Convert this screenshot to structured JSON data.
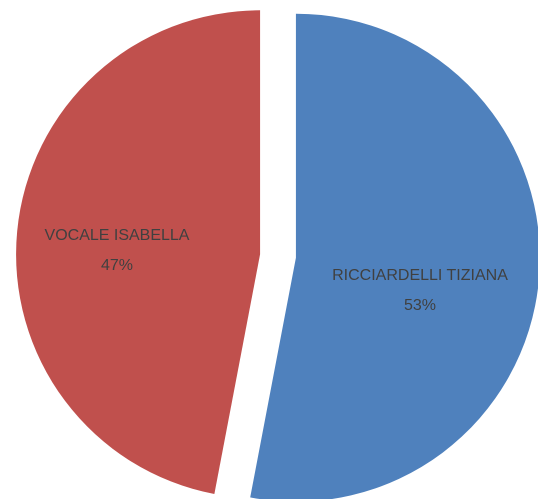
{
  "chart_data": {
    "type": "pie",
    "title": "",
    "slices": [
      {
        "label": "RICCIARDELLI TIZIANA",
        "percent_label": "53%",
        "value": 53,
        "color": "#4f81bd"
      },
      {
        "label": "VOCALE ISABELLA",
        "percent_label": "47%",
        "value": 47,
        "color": "#c0504d"
      }
    ],
    "start_angle": "12 o'clock",
    "direction": "clockwise",
    "exploded": true,
    "legend": "none"
  }
}
